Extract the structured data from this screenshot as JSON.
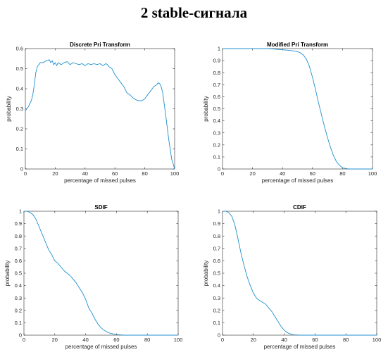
{
  "page_title": "2 stable-сигнала",
  "series_color": "#1f8fcf",
  "chart_data": [
    {
      "type": "line",
      "title": "Discrete Pri Transform",
      "xlabel": "percentage of missed pulses",
      "ylabel": "probability",
      "xlim": [
        0,
        100
      ],
      "ylim": [
        0,
        0.6
      ],
      "xticks": [
        "0",
        "20",
        "40",
        "60",
        "80",
        "100"
      ],
      "yticks": [
        "0",
        "0.1",
        "0.2",
        "0.3",
        "0.4",
        "0.5",
        "0.6"
      ],
      "grid": false,
      "x": [
        0,
        2,
        4,
        5,
        6,
        7,
        8,
        10,
        12,
        14,
        15,
        16,
        17,
        18,
        19,
        20,
        21,
        22,
        24,
        26,
        28,
        30,
        32,
        34,
        36,
        38,
        40,
        42,
        44,
        46,
        48,
        50,
        52,
        54,
        55,
        56,
        58,
        60,
        62,
        64,
        66,
        68,
        70,
        72,
        74,
        76,
        78,
        80,
        82,
        84,
        86,
        88,
        89,
        90,
        91,
        92,
        94,
        96,
        98,
        100
      ],
      "y": [
        0.29,
        0.31,
        0.34,
        0.37,
        0.42,
        0.48,
        0.51,
        0.53,
        0.53,
        0.54,
        0.54,
        0.545,
        0.53,
        0.54,
        0.52,
        0.53,
        0.515,
        0.53,
        0.52,
        0.53,
        0.535,
        0.52,
        0.53,
        0.525,
        0.52,
        0.525,
        0.515,
        0.525,
        0.52,
        0.525,
        0.52,
        0.525,
        0.515,
        0.525,
        0.52,
        0.51,
        0.5,
        0.47,
        0.45,
        0.43,
        0.41,
        0.38,
        0.37,
        0.355,
        0.345,
        0.34,
        0.34,
        0.35,
        0.37,
        0.39,
        0.41,
        0.42,
        0.43,
        0.425,
        0.41,
        0.38,
        0.27,
        0.15,
        0.05,
        0.0
      ]
    },
    {
      "type": "line",
      "title": "Modified Pri Transform",
      "xlabel": "percentage of missed pulses",
      "ylabel": "probability",
      "xlim": [
        0,
        100
      ],
      "ylim": [
        0,
        1
      ],
      "xticks": [
        "0",
        "20",
        "40",
        "60",
        "80",
        "100"
      ],
      "yticks": [
        "0",
        "0.1",
        "0.2",
        "0.3",
        "0.4",
        "0.5",
        "0.6",
        "0.7",
        "0.8",
        "0.9",
        "1"
      ],
      "grid": false,
      "x": [
        0,
        10,
        20,
        30,
        35,
        40,
        45,
        50,
        52,
        54,
        56,
        58,
        60,
        62,
        64,
        66,
        68,
        70,
        72,
        74,
        76,
        78,
        80,
        82,
        84,
        86,
        90,
        100
      ],
      "y": [
        1.0,
        1.0,
        1.0,
        1.0,
        0.995,
        0.99,
        0.985,
        0.975,
        0.965,
        0.945,
        0.91,
        0.85,
        0.76,
        0.66,
        0.55,
        0.45,
        0.35,
        0.26,
        0.18,
        0.11,
        0.06,
        0.03,
        0.01,
        0.005,
        0.0,
        0.0,
        0.0,
        0.0
      ]
    },
    {
      "type": "line",
      "title": "SDIF",
      "xlabel": "percentage of missed pulses",
      "ylabel": "probability",
      "xlim": [
        0,
        100
      ],
      "ylim": [
        0,
        1
      ],
      "xticks": [
        "0",
        "20",
        "40",
        "60",
        "80",
        "100"
      ],
      "yticks": [
        "0",
        "0.1",
        "0.2",
        "0.3",
        "0.4",
        "0.5",
        "0.6",
        "0.7",
        "0.8",
        "0.9",
        "1"
      ],
      "grid": false,
      "x": [
        0,
        2,
        4,
        6,
        8,
        10,
        12,
        14,
        16,
        18,
        20,
        22,
        24,
        26,
        28,
        30,
        32,
        34,
        36,
        38,
        40,
        42,
        44,
        46,
        48,
        50,
        52,
        54,
        56,
        58,
        60,
        62,
        65,
        70,
        80,
        90,
        100
      ],
      "y": [
        1.0,
        1.0,
        0.99,
        0.97,
        0.93,
        0.87,
        0.81,
        0.75,
        0.69,
        0.65,
        0.6,
        0.58,
        0.55,
        0.52,
        0.5,
        0.48,
        0.45,
        0.42,
        0.38,
        0.34,
        0.29,
        0.22,
        0.18,
        0.13,
        0.09,
        0.06,
        0.04,
        0.025,
        0.015,
        0.01,
        0.005,
        0.003,
        0.0,
        0.0,
        0.0,
        0.0,
        0.0
      ]
    },
    {
      "type": "line",
      "title": "CDIF",
      "xlabel": "percentage of missed pulses",
      "ylabel": "probability",
      "xlim": [
        0,
        100
      ],
      "ylim": [
        0,
        1
      ],
      "xticks": [
        "0",
        "20",
        "40",
        "60",
        "80",
        "100"
      ],
      "yticks": [
        "0",
        "0.1",
        "0.2",
        "0.3",
        "0.4",
        "0.5",
        "0.6",
        "0.7",
        "0.8",
        "0.9",
        "1"
      ],
      "grid": false,
      "x": [
        0,
        2,
        4,
        6,
        8,
        10,
        12,
        14,
        16,
        18,
        20,
        22,
        24,
        26,
        28,
        30,
        32,
        34,
        36,
        38,
        40,
        42,
        44,
        46,
        50,
        60,
        80,
        100
      ],
      "y": [
        1.0,
        1.0,
        0.99,
        0.96,
        0.89,
        0.78,
        0.66,
        0.56,
        0.47,
        0.4,
        0.34,
        0.3,
        0.28,
        0.265,
        0.25,
        0.22,
        0.19,
        0.15,
        0.11,
        0.07,
        0.04,
        0.02,
        0.01,
        0.003,
        0.0,
        0.0,
        0.0,
        0.0
      ]
    }
  ]
}
